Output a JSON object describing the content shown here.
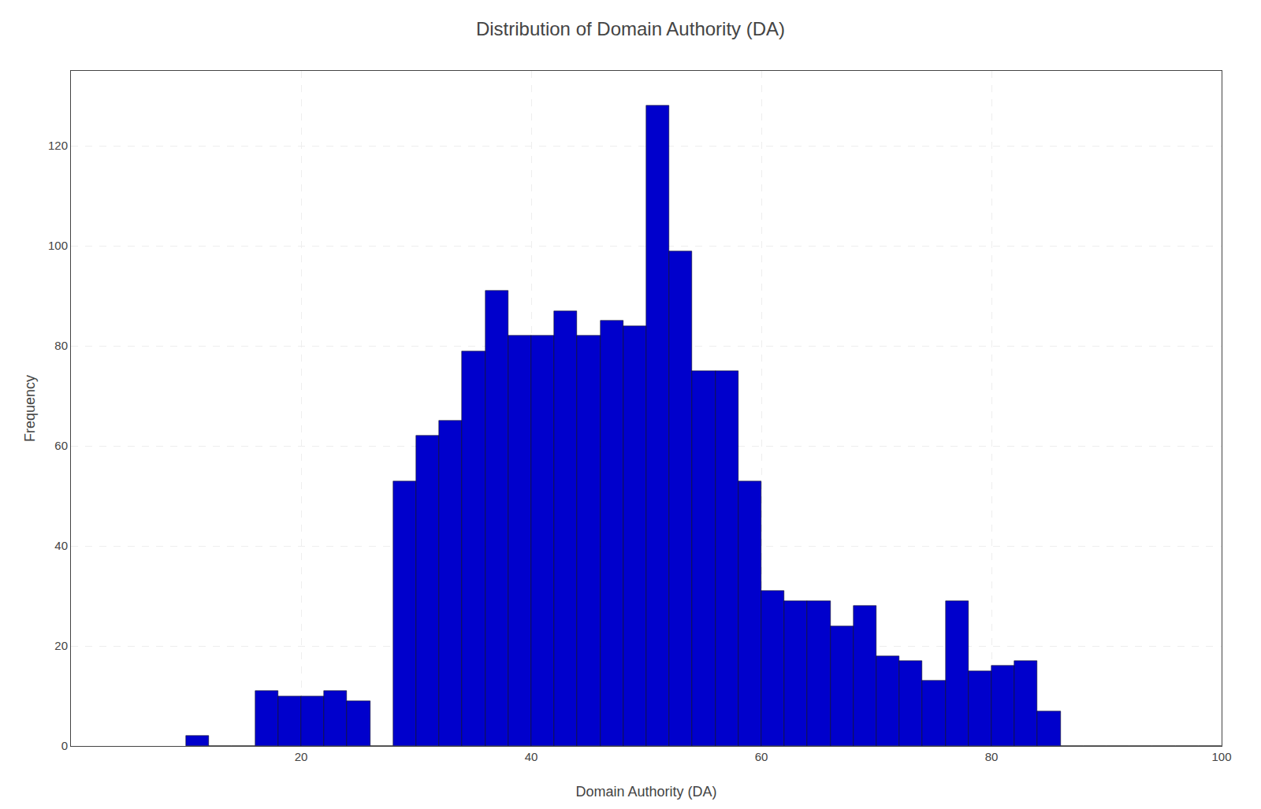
{
  "chart_data": {
    "type": "histogram",
    "title": "Distribution of Domain Authority (DA)",
    "xlabel": "Domain Authority (DA)",
    "ylabel": "Frequency",
    "bins": [
      10,
      12,
      14,
      16,
      18,
      20,
      22,
      24,
      26,
      28,
      30,
      32,
      34,
      36,
      38,
      40,
      42,
      44,
      46,
      48,
      50,
      52,
      54,
      56,
      58,
      60,
      62,
      64,
      66,
      68,
      70,
      72,
      74,
      76,
      78,
      80,
      82,
      84,
      86,
      88,
      90,
      92,
      94,
      96,
      98,
      100
    ],
    "values": [
      2,
      0,
      0,
      11,
      10,
      10,
      11,
      9,
      0,
      53,
      62,
      65,
      79,
      91,
      82,
      82,
      87,
      82,
      85,
      84,
      128,
      99,
      75,
      75,
      53,
      31,
      29,
      29,
      24,
      28,
      18,
      17,
      13,
      29,
      15,
      16,
      17,
      7,
      0,
      0,
      0,
      0,
      0,
      0,
      0
    ],
    "color": "#0000CC",
    "xlim": [
      0,
      100
    ],
    "ylim": [
      0,
      135
    ],
    "xticks": [
      20,
      40,
      60,
      80,
      100
    ],
    "yticks": [
      0,
      20,
      40,
      60,
      80,
      100,
      120
    ],
    "grid": true
  }
}
